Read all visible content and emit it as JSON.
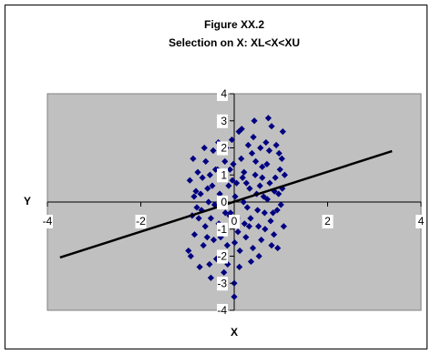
{
  "chart_data": {
    "type": "scatter",
    "title": [
      "Figure XX.2",
      "Selection on X: XL<X<XU"
    ],
    "x_label": "X",
    "y_label": "Y",
    "xlim": [
      -4,
      4
    ],
    "ylim": [
      -4,
      4
    ],
    "xticks": [
      -4,
      -2,
      0,
      2,
      4
    ],
    "yticks": [
      -4,
      -3,
      -2,
      -1,
      0,
      1,
      2,
      3,
      4
    ],
    "color": "#000080",
    "fit_line": {
      "color": "#000000",
      "x": [
        -3.73,
        3.38
      ],
      "y": [
        -2.05,
        1.88
      ]
    },
    "x": [
      -0.95,
      -0.85,
      -0.72,
      -0.61,
      -0.5,
      -0.38,
      -0.3,
      -0.18,
      -0.08,
      0.02,
      0.12,
      0.21,
      0.33,
      0.41,
      0.52,
      0.6,
      0.71,
      0.8,
      0.92,
      1.02,
      -0.9,
      -0.78,
      -0.66,
      -0.55,
      -0.45,
      -0.33,
      -0.22,
      -0.12,
      -0.02,
      0.08,
      0.18,
      0.28,
      0.38,
      0.48,
      0.58,
      0.68,
      0.78,
      0.88,
      0.98,
      1.06,
      -0.98,
      -0.82,
      -0.7,
      -0.58,
      -0.47,
      -0.36,
      -0.25,
      -0.15,
      -0.05,
      0.05,
      0.15,
      0.25,
      0.35,
      0.45,
      0.55,
      0.65,
      0.75,
      0.85,
      0.95,
      1.04,
      -0.88,
      -0.76,
      -0.64,
      -0.53,
      -0.42,
      -0.31,
      -0.2,
      -0.1,
      0.0,
      0.1,
      0.2,
      0.3,
      0.4,
      0.5,
      0.6,
      0.7,
      0.8,
      0.9,
      1.0,
      -0.5,
      -0.93,
      -0.8,
      -0.68,
      -0.57,
      -0.44,
      -0.34,
      -0.24,
      -0.14,
      -0.04,
      0.06,
      0.16,
      0.26,
      0.36,
      0.46,
      0.56,
      0.66,
      0.76,
      0.86,
      0.96,
      1.08,
      -0.86,
      -0.74,
      -0.62,
      -0.52,
      -0.4,
      -0.29,
      -0.19,
      -0.09,
      0.01,
      0.11,
      0.22,
      0.32,
      0.43,
      0.53,
      0.63,
      0.73,
      0.83,
      0.93,
      1.03,
      0.0
    ],
    "y": [
      0.8,
      -1.2,
      0.3,
      1.5,
      -0.6,
      -2.1,
      0.9,
      2.0,
      -0.4,
      0.2,
      -1.8,
      1.1,
      0.5,
      2.4,
      -0.9,
      1.3,
      0.1,
      2.8,
      -0.3,
      1.6,
      -0.5,
      1.1,
      -1.6,
      0.0,
      1.9,
      -0.8,
      -2.6,
      0.6,
      1.4,
      -1.1,
      0.9,
      -0.2,
      1.8,
      0.3,
      -1.4,
      2.2,
      -0.7,
      0.9,
      1.2,
      -0.9,
      -1.8,
      0.4,
      -0.3,
      -1.3,
      0.6,
      1.2,
      -1.0,
      -1.6,
      2.3,
      0.7,
      1.6,
      -1.3,
      -0.6,
      1.0,
      0.6,
      -0.4,
      1.9,
      -1.2,
      0.3,
      2.6,
      1.6,
      -0.6,
      2.0,
      -2.3,
      -0.1,
      0.3,
      1.5,
      -0.5,
      -3.5,
      2.6,
      0.0,
      2.1,
      -1.7,
      -0.3,
      0.9,
      1.4,
      -1.6,
      2.1,
      -0.1,
      -2.8,
      -2.0,
      -0.2,
      0.9,
      0.5,
      -1.4,
      2.2,
      0.1,
      -2.3,
      0.8,
      -0.6,
      2.7,
      0.7,
      -2.2,
      1.5,
      2.0,
      -1.0,
      0.7,
      0.4,
      1.8,
      1.0,
      0.2,
      -2.4,
      -0.9,
      1.0,
      1.2,
      -1.3,
      -0.4,
      1.2,
      -1.5,
      -2.4,
      -0.8,
      -0.9,
      3.0,
      -2.0,
      0.2,
      3.1,
      -0.4,
      -1.7,
      0.5,
      -3.0
    ]
  }
}
